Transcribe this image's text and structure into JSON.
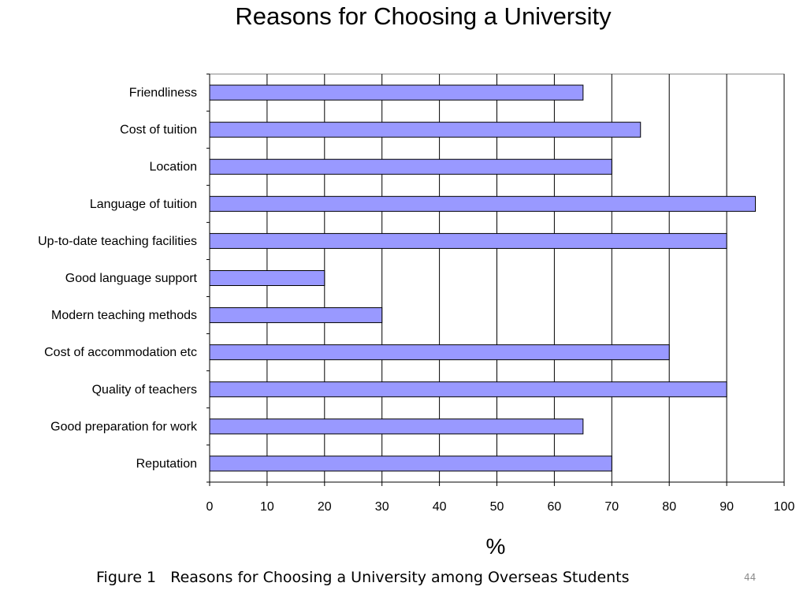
{
  "chart_data": {
    "type": "bar",
    "orientation": "horizontal",
    "title": "Reasons for Choosing a University",
    "xlabel": "%",
    "ylabel": "",
    "xlim": [
      0,
      100
    ],
    "x_ticks": [
      0,
      10,
      20,
      30,
      40,
      50,
      60,
      70,
      80,
      90,
      100
    ],
    "categories": [
      "Friendliness",
      "Cost of tuition",
      "Location",
      "Language of tuition",
      "Up-to-date teaching facilities",
      "Good language support",
      "Modern teaching methods",
      "Cost of accommodation etc",
      "Quality of teachers",
      "Good preparation for work",
      "Reputation"
    ],
    "values": [
      65,
      75,
      70,
      95,
      90,
      20,
      30,
      80,
      90,
      65,
      70
    ],
    "bar_color": "#9999ff",
    "grid": true,
    "legend": false
  },
  "caption": "Figure 1   Reasons for Choosing a University among Overseas Students",
  "page_number": "44"
}
